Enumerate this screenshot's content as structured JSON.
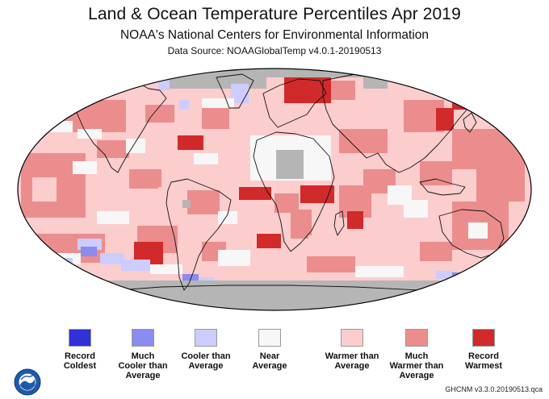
{
  "header": {
    "title": "Land & Ocean Temperature Percentiles Apr 2019",
    "subtitle": "NOAA's National Centers for Environmental Information",
    "data_source": "Data Source: NOAAGlobalTemp v4.0.1-20190513"
  },
  "colors": {
    "no_data": "#b5b5b5",
    "land_outline": "#111111"
  },
  "legend": [
    {
      "label": "Record\nColdest",
      "color": "#3131d6"
    },
    {
      "label": "Much\nCooler than\nAverage",
      "color": "#8b8bf0"
    },
    {
      "label": "Cooler than\nAverage",
      "color": "#ccccff"
    },
    {
      "label": "Near\nAverage",
      "color": "#f7f7f7"
    },
    {
      "label": "Warmer than\nAverage",
      "color": "#fccdcd"
    },
    {
      "label": "Much\nWarmer than\nAverage",
      "color": "#ec8d8d"
    },
    {
      "label": "Record\nWarmest",
      "color": "#d12a2a"
    }
  ],
  "logo": {
    "name": "noaa-logo",
    "text": "NOAA"
  },
  "footer": {
    "version": "GHCNM v3.3.0.20190513.qca"
  }
}
